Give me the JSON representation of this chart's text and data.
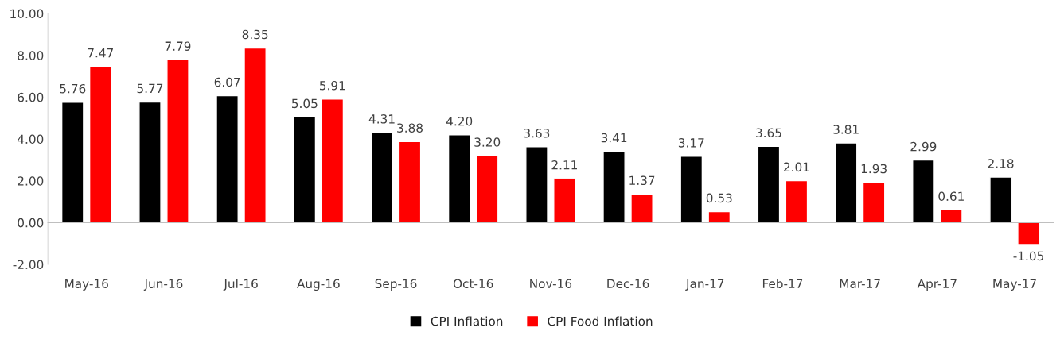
{
  "chart_data": {
    "type": "bar",
    "categories": [
      "May-16",
      "Jun-16",
      "Jul-16",
      "Aug-16",
      "Sep-16",
      "Oct-16",
      "Nov-16",
      "Dec-16",
      "Jan-17",
      "Feb-17",
      "Mar-17",
      "Apr-17",
      "May-17"
    ],
    "series": [
      {
        "name": "CPI Inflation",
        "color": "#000000",
        "values": [
          5.76,
          5.77,
          6.07,
          5.05,
          4.31,
          4.2,
          3.63,
          3.41,
          3.17,
          3.65,
          3.81,
          2.99,
          2.18
        ],
        "value_labels": [
          "5.76",
          "5.77",
          "6.07",
          "5.05",
          "4.31",
          "4.20",
          "3.63",
          "3.41",
          "3.17",
          "3.65",
          "3.81",
          "2.99",
          "2.18"
        ]
      },
      {
        "name": "CPI Food Inflation",
        "color": "#ff0000",
        "values": [
          7.47,
          7.79,
          8.35,
          5.91,
          3.88,
          3.2,
          2.11,
          1.37,
          0.53,
          2.01,
          1.93,
          0.61,
          -1.05
        ],
        "value_labels": [
          "7.47",
          "7.79",
          "8.35",
          "5.91",
          "3.88",
          "3.20",
          "2.11",
          "1.37",
          "0.53",
          "2.01",
          "1.93",
          "0.61",
          "-1.05"
        ]
      }
    ],
    "ylim": [
      -2,
      10
    ],
    "yticks": [
      {
        "value": -2,
        "label": "-2.00"
      },
      {
        "value": 0,
        "label": "0.00"
      },
      {
        "value": 2,
        "label": "2.00"
      },
      {
        "value": 4,
        "label": "4.00"
      },
      {
        "value": 6,
        "label": "6.00"
      },
      {
        "value": 8,
        "label": "8.00"
      },
      {
        "value": 10,
        "label": "10.00"
      }
    ],
    "legend": "bottom"
  }
}
